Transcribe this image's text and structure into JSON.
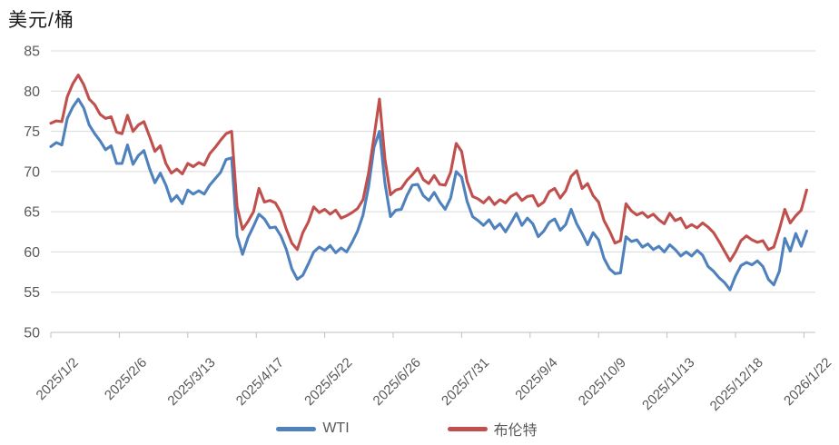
{
  "title": "美元/桶",
  "colors": {
    "wti_line": "#4F81BD",
    "brent_line": "#C0504D",
    "grid": "#D9D9D9",
    "axis": "#BFBFBF",
    "axis_text": "#595959",
    "title_text": "#1A1A1A",
    "background": "#FFFFFF"
  },
  "legend": {
    "position": "bottom-center",
    "items": [
      {
        "label": "WTI",
        "color": "#4F81BD"
      },
      {
        "label": "布伦特",
        "color": "#C0504D"
      }
    ]
  },
  "chart_data": {
    "type": "line",
    "title": "美元/桶",
    "xlabel": "",
    "ylabel": "美元/桶",
    "ylim": [
      50,
      85
    ],
    "y_ticks": [
      85,
      80,
      75,
      70,
      65,
      60,
      55,
      50
    ],
    "grid": "horizontal",
    "legend_position": "bottom",
    "x_unit": "trading-day index from 2025/1/2",
    "x_start_day": 0,
    "x_step_days": 2,
    "x_ticks": [
      {
        "day": 0,
        "label": "2025/1/2"
      },
      {
        "day": 25,
        "label": "2025/2/6"
      },
      {
        "day": 50,
        "label": "2025/3/13"
      },
      {
        "day": 75,
        "label": "2025/4/17"
      },
      {
        "day": 100,
        "label": "2025/5/22"
      },
      {
        "day": 125,
        "label": "2025/6/26"
      },
      {
        "day": 150,
        "label": "2025/7/31"
      },
      {
        "day": 175,
        "label": "2025/9/4"
      },
      {
        "day": 200,
        "label": "2025/10/9"
      },
      {
        "day": 225,
        "label": "2025/11/13"
      },
      {
        "day": 250,
        "label": "2025/12/18"
      },
      {
        "day": 275,
        "label": "2026/1/22"
      }
    ],
    "series": [
      {
        "name": "WTI",
        "color": "#4F81BD",
        "values": [
          73.1,
          73.6,
          73.3,
          76.6,
          78.0,
          79.0,
          77.9,
          75.8,
          74.7,
          73.8,
          72.7,
          73.2,
          71.0,
          71.0,
          73.3,
          70.9,
          72.0,
          72.6,
          70.4,
          68.6,
          69.8,
          68.3,
          66.3,
          67.0,
          66.0,
          67.7,
          67.2,
          67.6,
          67.2,
          68.3,
          69.1,
          69.9,
          71.5,
          71.7,
          62.0,
          59.7,
          61.8,
          63.2,
          64.7,
          64.1,
          63.0,
          63.1,
          62.0,
          60.3,
          57.9,
          56.6,
          57.1,
          58.5,
          60.0,
          60.6,
          60.2,
          60.8,
          59.9,
          60.5,
          60.0,
          61.2,
          62.6,
          64.6,
          68.1,
          73.0,
          75.0,
          68.5,
          64.4,
          65.2,
          65.3,
          67.0,
          68.3,
          68.4,
          67.0,
          66.4,
          67.4,
          66.2,
          65.3,
          66.7,
          70.0,
          69.3,
          66.3,
          64.4,
          63.9,
          63.3,
          64.0,
          62.9,
          63.5,
          62.5,
          63.6,
          64.8,
          63.3,
          64.2,
          63.5,
          61.9,
          62.6,
          63.7,
          64.1,
          62.7,
          63.4,
          65.3,
          63.5,
          62.3,
          60.9,
          62.4,
          61.5,
          59.2,
          57.9,
          57.3,
          57.4,
          61.9,
          61.3,
          61.5,
          60.6,
          61.0,
          60.3,
          60.7,
          60.0,
          60.9,
          60.3,
          59.5,
          60.0,
          59.5,
          60.2,
          59.6,
          58.2,
          57.6,
          56.8,
          56.2,
          55.3,
          57.0,
          58.3,
          58.7,
          58.4,
          58.9,
          58.2,
          56.6,
          55.9,
          57.6,
          61.7,
          60.1,
          62.3,
          60.7,
          62.6
        ]
      },
      {
        "name": "布伦特",
        "color": "#C0504D",
        "values": [
          76.0,
          76.3,
          76.2,
          79.3,
          80.9,
          82.0,
          80.8,
          79.0,
          78.3,
          77.1,
          76.6,
          76.8,
          74.9,
          74.7,
          77.0,
          75.0,
          75.8,
          76.2,
          74.4,
          72.5,
          73.2,
          71.0,
          69.8,
          70.3,
          69.7,
          71.0,
          70.6,
          71.1,
          70.8,
          72.2,
          73.0,
          73.9,
          74.7,
          75.0,
          65.6,
          62.8,
          63.8,
          65.0,
          67.9,
          66.2,
          66.4,
          66.1,
          64.9,
          62.8,
          61.1,
          60.3,
          62.4,
          63.7,
          65.6,
          64.9,
          65.3,
          64.7,
          65.2,
          64.2,
          64.5,
          64.9,
          65.4,
          66.5,
          69.8,
          74.3,
          79.0,
          71.5,
          67.1,
          67.7,
          67.9,
          68.9,
          69.6,
          70.4,
          69.0,
          68.5,
          69.5,
          68.4,
          68.3,
          69.9,
          73.5,
          72.5,
          68.8,
          66.9,
          66.6,
          66.1,
          66.8,
          65.9,
          66.5,
          66.1,
          66.9,
          67.3,
          66.4,
          66.9,
          67.0,
          65.7,
          66.2,
          67.5,
          67.9,
          66.7,
          67.6,
          69.4,
          70.1,
          67.9,
          68.5,
          67.0,
          66.2,
          63.9,
          62.6,
          61.1,
          61.4,
          66.0,
          65.1,
          64.6,
          64.9,
          64.3,
          64.7,
          64.0,
          63.5,
          64.8,
          63.9,
          64.2,
          63.0,
          63.4,
          63.0,
          63.6,
          63.1,
          62.4,
          61.3,
          60.1,
          58.9,
          60.0,
          61.4,
          62.0,
          61.5,
          61.2,
          61.4,
          60.3,
          60.6,
          62.8,
          65.3,
          63.6,
          64.5,
          65.2,
          67.7
        ]
      }
    ]
  }
}
